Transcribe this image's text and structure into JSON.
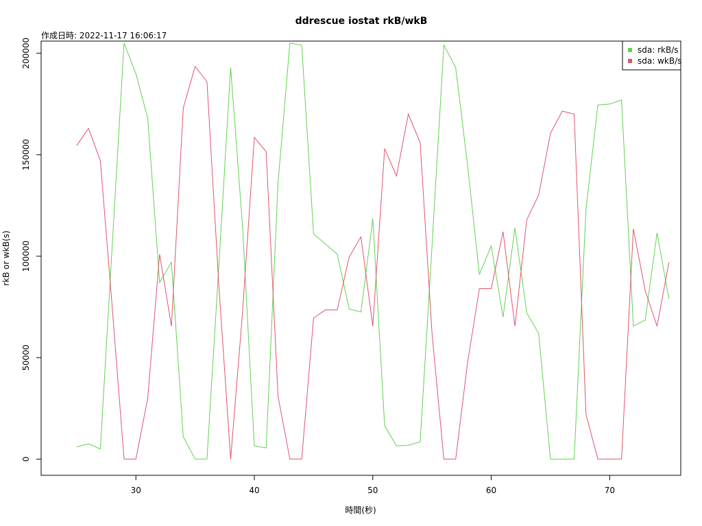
{
  "chart_data": {
    "type": "line",
    "title": "ddrescue iostat rkB/wkB",
    "subtitle": "作成日時: 2022-11-17 16:06:17",
    "xlabel": "時間(秒)",
    "ylabel": "rkB or wkB(s)",
    "xlim": [
      22,
      76
    ],
    "ylim": [
      -8000,
      206000
    ],
    "xticks": [
      30,
      40,
      50,
      60,
      70
    ],
    "yticks": [
      0,
      50000,
      100000,
      150000,
      200000
    ],
    "grid": false,
    "legend": "top-right",
    "x": [
      25,
      26,
      27,
      28,
      29,
      30,
      31,
      32,
      33,
      34,
      35,
      36,
      37,
      38,
      39,
      40,
      41,
      42,
      43,
      44,
      45,
      46,
      47,
      48,
      49,
      50,
      51,
      52,
      53,
      54,
      55,
      56,
      57,
      58,
      59,
      60,
      61,
      62,
      63,
      64,
      65,
      66,
      67,
      68,
      69,
      70,
      71,
      72,
      73,
      74,
      75
    ],
    "series": [
      {
        "name": "sda: rkB/s",
        "color": "#61d04f",
        "values": [
          6000,
          7500,
          5000,
          105000,
          205000,
          190000,
          168000,
          87000,
          97000,
          11000,
          0,
          0,
          95000,
          193000,
          115000,
          6500,
          5500,
          136000,
          205000,
          204000,
          111000,
          106000,
          101000,
          74000,
          72500,
          118500,
          16500,
          6500,
          6800,
          8500,
          105000,
          204000,
          193000,
          145000,
          91000,
          105000,
          70000,
          114000,
          72000,
          62000,
          0,
          0,
          0,
          123000,
          174500,
          175000,
          177000,
          65500,
          68500,
          111500,
          79000
        ]
      },
      {
        "name": "sda: wkB/s",
        "color": "#df536b",
        "values": [
          154500,
          163000,
          147000,
          75000,
          0,
          0,
          30000,
          101000,
          65500,
          173000,
          193500,
          186000,
          86000,
          0,
          72000,
          158500,
          151500,
          31000,
          0,
          0,
          69500,
          73500,
          73500,
          99500,
          109500,
          65500,
          153000,
          139500,
          170000,
          156000,
          62000,
          0,
          0,
          47500,
          84000,
          84000,
          112000,
          65500,
          118000,
          130000,
          160500,
          171500,
          170000,
          22000,
          0,
          0,
          0,
          113500,
          83000,
          65500,
          97000
        ]
      }
    ]
  }
}
